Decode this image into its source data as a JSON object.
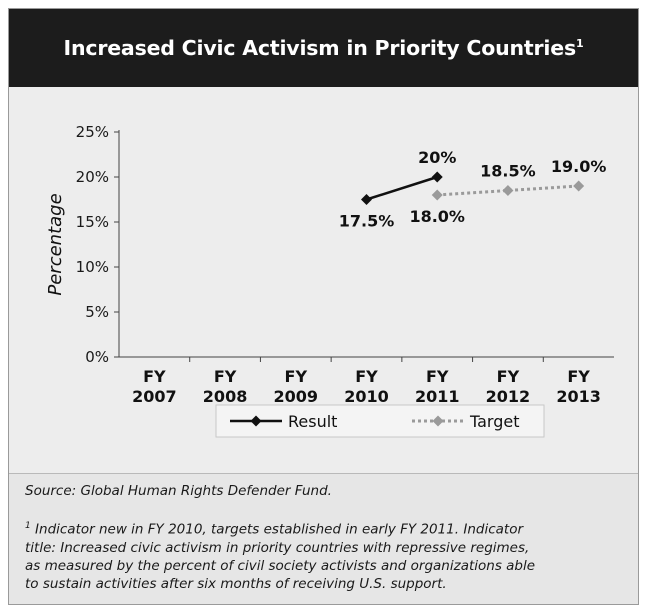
{
  "title": "Increased Civic Activism in Priority Countries",
  "title_footnote_mark": "1",
  "chart_data": {
    "type": "line",
    "title": "Increased Civic Activism in Priority Countries",
    "ylabel": "Percentage",
    "xlabel": "",
    "ylim": [
      0,
      25
    ],
    "y_ticks": [
      "0%",
      "5%",
      "10%",
      "15%",
      "20%",
      "25%"
    ],
    "y_tick_values": [
      0,
      5,
      10,
      15,
      20,
      25
    ],
    "categories": [
      {
        "line1": "FY",
        "line2": "2007"
      },
      {
        "line1": "FY",
        "line2": "2008"
      },
      {
        "line1": "FY",
        "line2": "2009"
      },
      {
        "line1": "FY",
        "line2": "2010"
      },
      {
        "line1": "FY",
        "line2": "2011"
      },
      {
        "line1": "FY",
        "line2": "2012"
      },
      {
        "line1": "FY",
        "line2": "2013"
      }
    ],
    "grid": false,
    "legend_position": "bottom",
    "series": [
      {
        "name": "Result",
        "color": "#111111",
        "style": "solid",
        "marker": "diamond",
        "points": [
          {
            "category_index": 3,
            "value": 17.5,
            "label": "17.5%",
            "label_position": "below"
          },
          {
            "category_index": 4,
            "value": 20,
            "label": "20%",
            "label_position": "above"
          }
        ]
      },
      {
        "name": "Target",
        "color": "#9a9a9a",
        "style": "dotted",
        "marker": "diamond",
        "points": [
          {
            "category_index": 4,
            "value": 18.0,
            "label": "18.0%",
            "label_position": "below"
          },
          {
            "category_index": 5,
            "value": 18.5,
            "label": "18.5%",
            "label_position": "above"
          },
          {
            "category_index": 6,
            "value": 19.0,
            "label": "19.0%",
            "label_position": "above"
          }
        ]
      }
    ]
  },
  "source": "Source: Global Human Rights Defender Fund.",
  "footnote": {
    "mark": "1",
    "lines": [
      " Indicator new in FY 2010, targets established in early FY 2011. Indicator",
      "title: Increased civic activism in priority countries with repressive regimes,",
      "as measured by the percent of civil society activists and organizations able",
      "to sustain activities after six months of receiving U.S. support."
    ]
  }
}
